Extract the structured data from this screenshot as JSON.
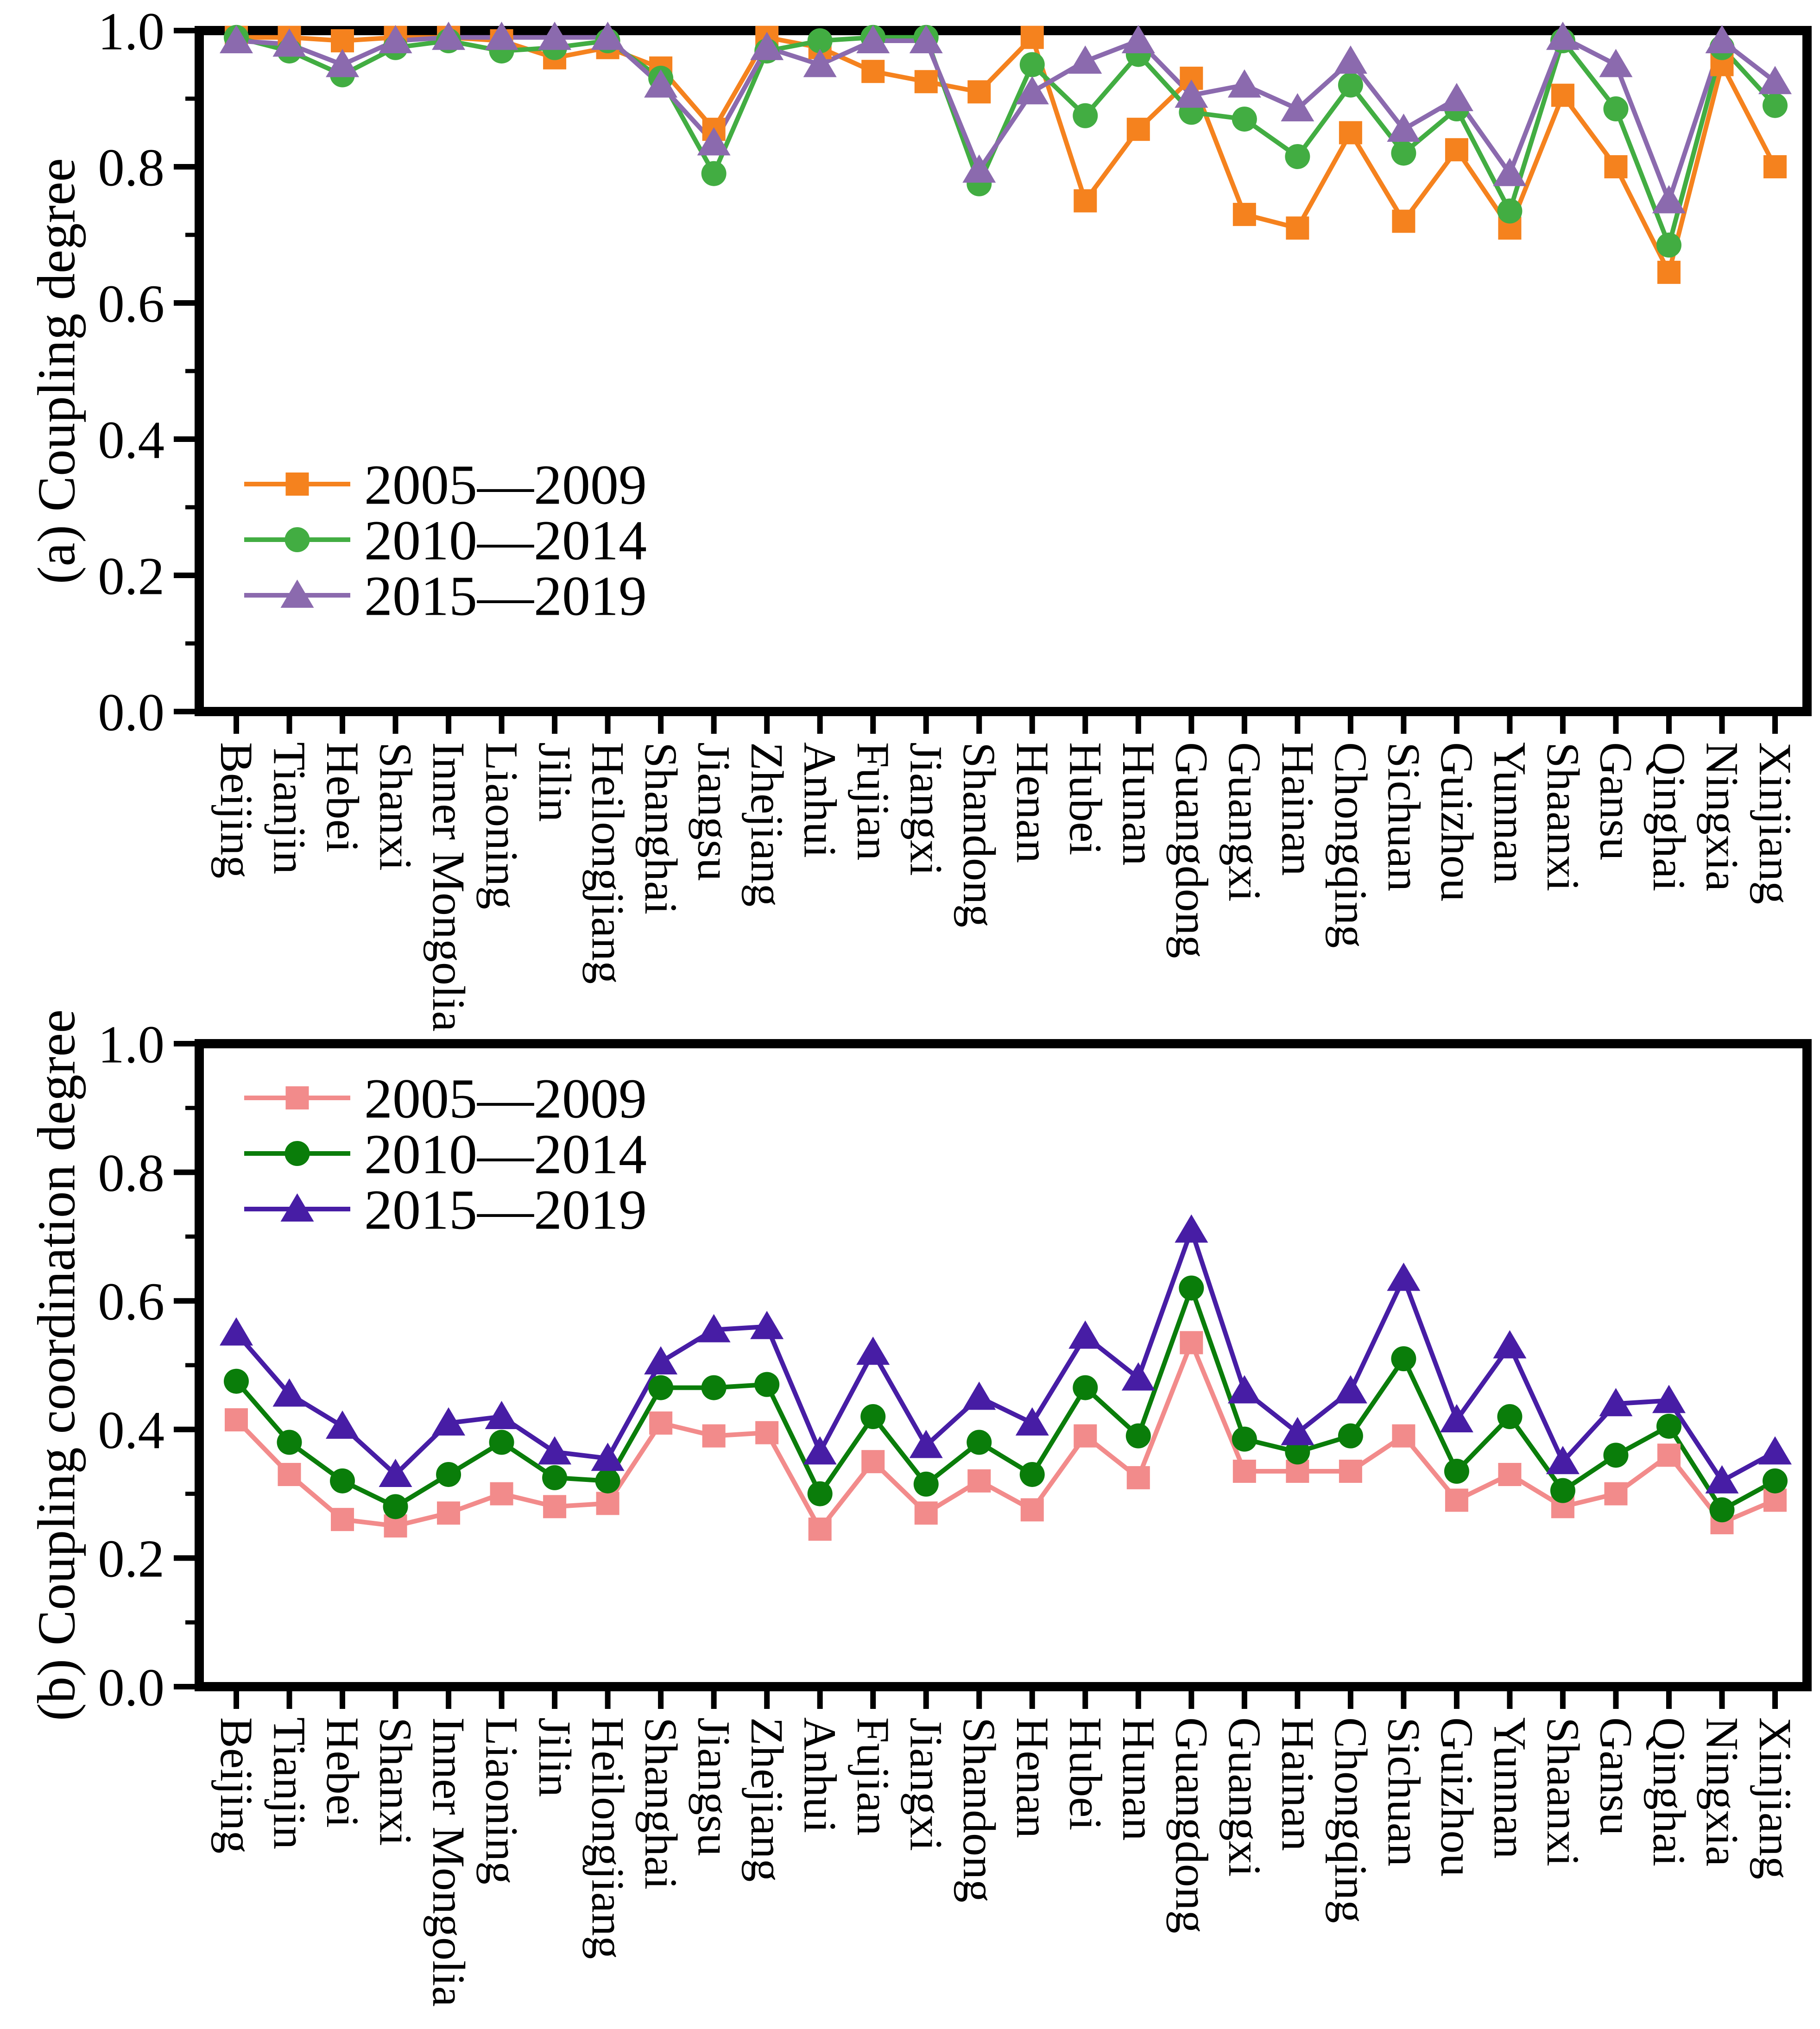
{
  "chart_data": [
    {
      "type": "line",
      "panel": "a",
      "ylabel": "(a) Coupling degree",
      "ylim": [
        0.0,
        1.0
      ],
      "ytick_step": 0.2,
      "yminor_step": 0.1,
      "grid": false,
      "legend_position": "inside-lower-left",
      "categories": [
        "Beijing",
        "Tianjin",
        "Hebei",
        "Shanxi",
        "Inner Mongolia",
        "Liaoning",
        "Jilin",
        "Heilongjiang",
        "Shanghai",
        "Jiangsu",
        "Zhejiang",
        "Anhui",
        "Fujian",
        "Jiangxi",
        "Shandong",
        "Henan",
        "Hubei",
        "Hunan",
        "Guangdong",
        "Guangxi",
        "Hainan",
        "Chongqing",
        "Sichuan",
        "Guizhou",
        "Yunnan",
        "Shaanxi",
        "Gansu",
        "Qinghai",
        "Ningxia",
        "Xinjiang"
      ],
      "series": [
        {
          "name": "2005—2009",
          "marker": "square",
          "color": "#F5821E",
          "values": [
            0.99,
            0.99,
            0.985,
            0.99,
            0.99,
            0.985,
            0.96,
            0.975,
            0.945,
            0.855,
            0.99,
            0.975,
            0.94,
            0.925,
            0.91,
            0.99,
            0.75,
            0.855,
            0.93,
            0.73,
            0.71,
            0.85,
            0.72,
            0.825,
            0.71,
            0.905,
            0.8,
            0.645,
            0.95,
            0.8
          ]
        },
        {
          "name": "2010—2014",
          "marker": "circle",
          "color": "#42AD42",
          "values": [
            0.99,
            0.97,
            0.935,
            0.975,
            0.985,
            0.97,
            0.975,
            0.985,
            0.93,
            0.79,
            0.97,
            0.985,
            0.99,
            0.99,
            0.775,
            0.95,
            0.875,
            0.965,
            0.88,
            0.87,
            0.815,
            0.92,
            0.82,
            0.885,
            0.735,
            0.985,
            0.885,
            0.685,
            0.975,
            0.89
          ]
        },
        {
          "name": "2015—2019",
          "marker": "triangle",
          "color": "#8B6AAE",
          "values": [
            0.985,
            0.98,
            0.95,
            0.985,
            0.99,
            0.99,
            0.99,
            0.99,
            0.92,
            0.835,
            0.975,
            0.95,
            0.985,
            0.985,
            0.795,
            0.91,
            0.955,
            0.985,
            0.905,
            0.92,
            0.885,
            0.955,
            0.855,
            0.9,
            0.79,
            0.99,
            0.95,
            0.75,
            0.985,
            0.925
          ]
        }
      ]
    },
    {
      "type": "line",
      "panel": "b",
      "ylabel": "(b) Coupling coordination degree",
      "ylim": [
        0.0,
        1.0
      ],
      "ytick_step": 0.2,
      "yminor_step": 0.1,
      "grid": false,
      "legend_position": "inside-upper-left",
      "categories": [
        "Beijing",
        "Tianjin",
        "Hebei",
        "Shanxi",
        "Inner Mongolia",
        "Liaoning",
        "Jilin",
        "Heilongjiang",
        "Shanghai",
        "Jiangsu",
        "Zhejiang",
        "Anhui",
        "Fujian",
        "Jiangxi",
        "Shandong",
        "Henan",
        "Hubei",
        "Hunan",
        "Guangdong",
        "Guangxi",
        "Hainan",
        "Chongqing",
        "Sichuan",
        "Guizhou",
        "Yunnan",
        "Shaanxi",
        "Gansu",
        "Qinghai",
        "Ningxia",
        "Xinjiang"
      ],
      "series": [
        {
          "name": "2005—2009",
          "marker": "square",
          "color": "#F28B8B",
          "values": [
            0.415,
            0.33,
            0.26,
            0.25,
            0.27,
            0.3,
            0.28,
            0.285,
            0.41,
            0.39,
            0.395,
            0.245,
            0.35,
            0.27,
            0.32,
            0.275,
            0.39,
            0.325,
            0.535,
            0.335,
            0.335,
            0.335,
            0.39,
            0.29,
            0.33,
            0.28,
            0.3,
            0.36,
            0.255,
            0.29
          ]
        },
        {
          "name": "2010—2014",
          "marker": "circle",
          "color": "#0A7D0A",
          "values": [
            0.475,
            0.38,
            0.32,
            0.28,
            0.33,
            0.38,
            0.325,
            0.32,
            0.465,
            0.465,
            0.47,
            0.3,
            0.42,
            0.315,
            0.38,
            0.33,
            0.465,
            0.39,
            0.62,
            0.385,
            0.365,
            0.39,
            0.51,
            0.335,
            0.42,
            0.305,
            0.36,
            0.405,
            0.275,
            0.32
          ]
        },
        {
          "name": "2015—2019",
          "marker": "triangle",
          "color": "#471DA5",
          "values": [
            0.55,
            0.455,
            0.405,
            0.33,
            0.41,
            0.42,
            0.365,
            0.355,
            0.505,
            0.555,
            0.56,
            0.365,
            0.52,
            0.375,
            0.45,
            0.41,
            0.545,
            0.48,
            0.71,
            0.46,
            0.395,
            0.46,
            0.635,
            0.415,
            0.53,
            0.35,
            0.44,
            0.445,
            0.32,
            0.365
          ]
        }
      ]
    }
  ],
  "axis_tick_labels": [
    "0.0",
    "0.2",
    "0.4",
    "0.6",
    "0.8",
    "1.0"
  ]
}
